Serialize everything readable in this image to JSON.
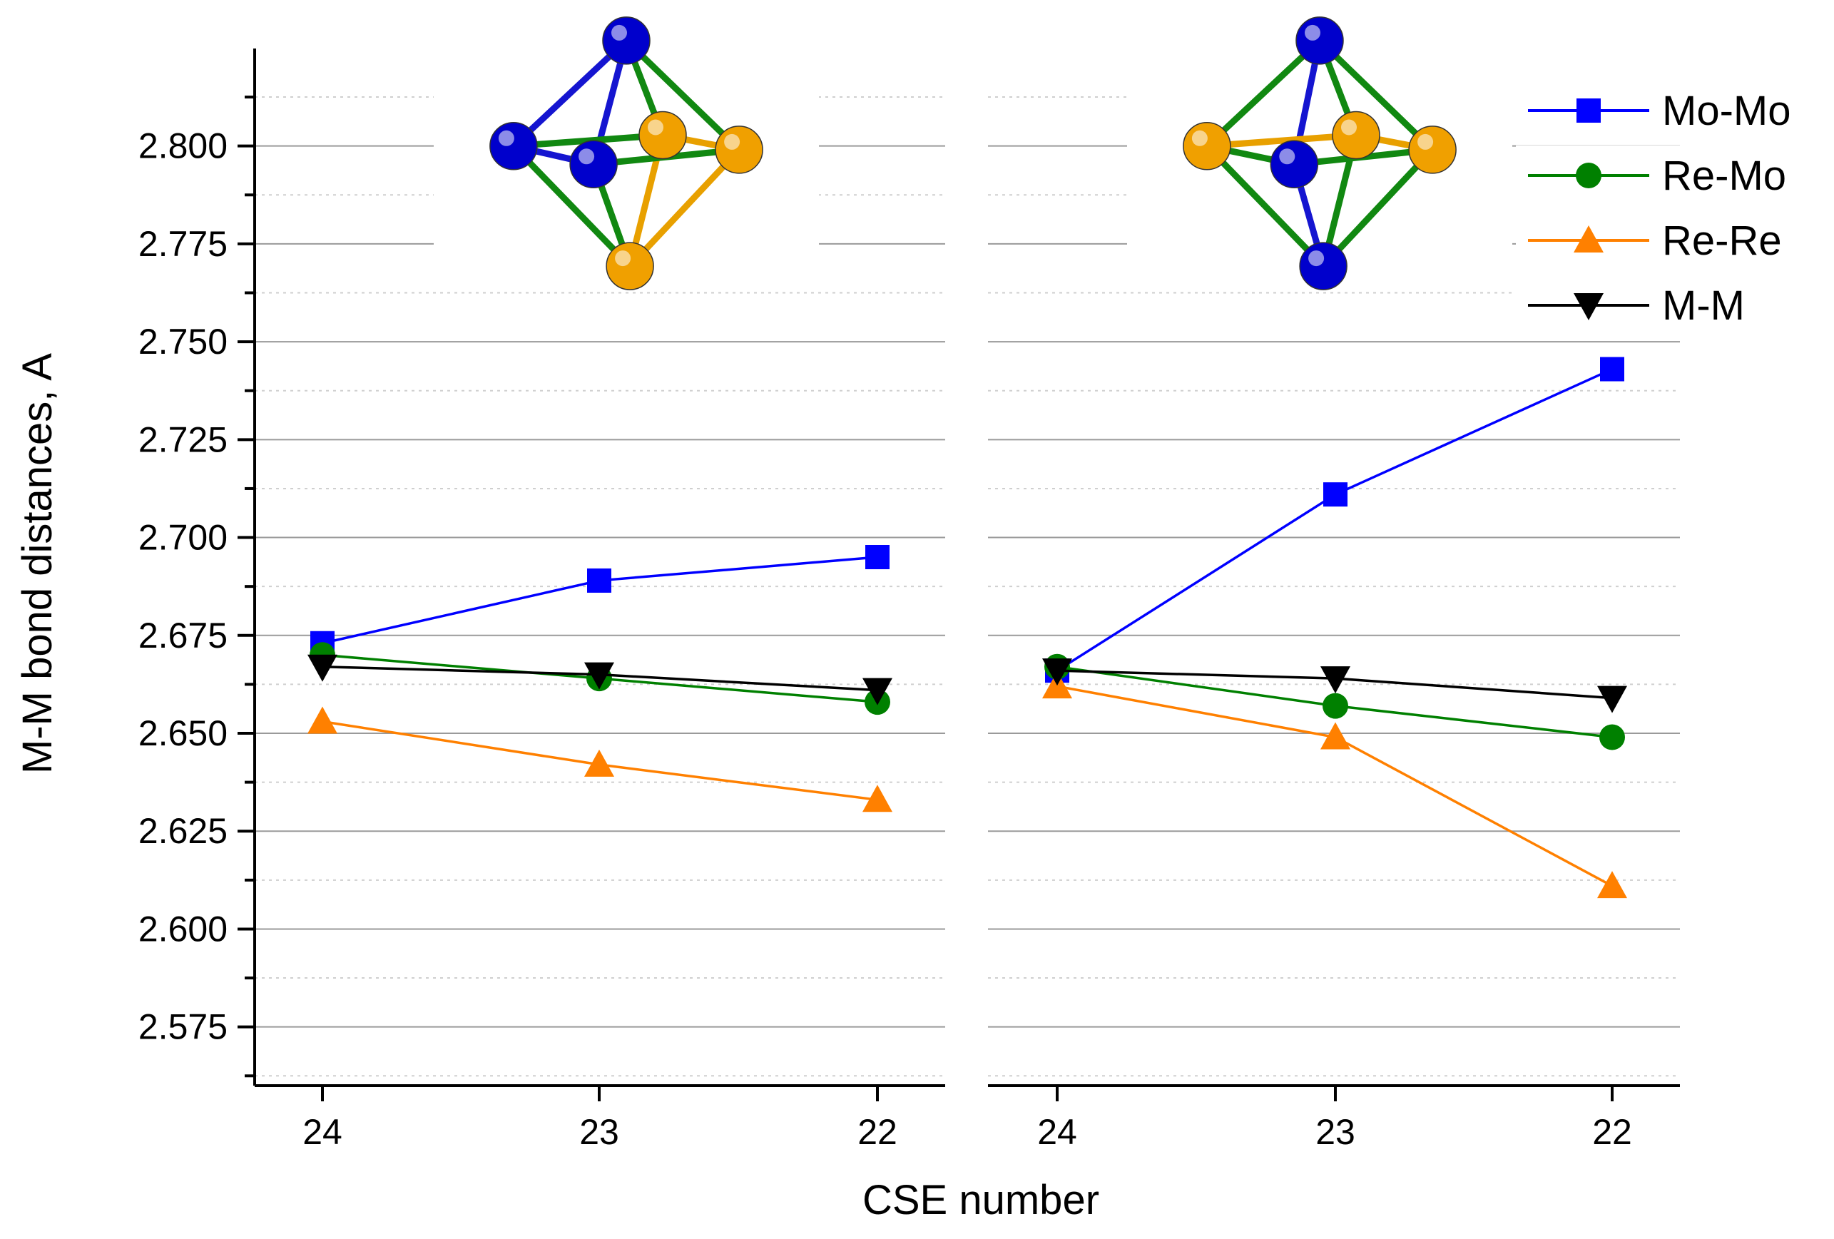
{
  "chart_data": {
    "type": "line",
    "xlabel": "CSE number",
    "ylabel": "M-M bond distances, A",
    "ylim": [
      2.56,
      2.83
    ],
    "yticks": [
      "2.575",
      "2.600",
      "2.625",
      "2.650",
      "2.675",
      "2.700",
      "2.725",
      "2.750",
      "2.775",
      "2.800"
    ],
    "grid": true,
    "legend_position": "top-right",
    "panels": [
      {
        "categories": [
          "24",
          "23",
          "22"
        ],
        "series": [
          {
            "name": "Mo-Mo",
            "color": "#0000ff",
            "marker": "square",
            "values": [
              2.673,
              2.689,
              2.695
            ]
          },
          {
            "name": "Re-Mo",
            "color": "#008000",
            "marker": "circle",
            "values": [
              2.67,
              2.664,
              2.658
            ]
          },
          {
            "name": "Re-Re",
            "color": "#ff8000",
            "marker": "triangle-up",
            "values": [
              2.653,
              2.642,
              2.633
            ]
          },
          {
            "name": "M-M",
            "color": "#000000",
            "marker": "triangle-down",
            "values": [
              2.667,
              2.665,
              2.661
            ]
          }
        ]
      },
      {
        "categories": [
          "24",
          "23",
          "22"
        ],
        "series": [
          {
            "name": "Mo-Mo",
            "color": "#0000ff",
            "marker": "square",
            "values": [
              2.666,
              2.711,
              2.743
            ]
          },
          {
            "name": "Re-Mo",
            "color": "#008000",
            "marker": "circle",
            "values": [
              2.667,
              2.657,
              2.649
            ]
          },
          {
            "name": "Re-Re",
            "color": "#ff8000",
            "marker": "triangle-up",
            "values": [
              2.662,
              2.649,
              2.611
            ]
          },
          {
            "name": "M-M",
            "color": "#000000",
            "marker": "triangle-down",
            "values": [
              2.666,
              2.664,
              2.659
            ]
          }
        ]
      }
    ],
    "legend": [
      {
        "name": "Mo-Mo",
        "color": "#0000ff",
        "marker": "square"
      },
      {
        "name": "Re-Mo",
        "color": "#008000",
        "marker": "circle"
      },
      {
        "name": "Re-Re",
        "color": "#ff8000",
        "marker": "triangle-up"
      },
      {
        "name": "M-M",
        "color": "#000000",
        "marker": "triangle-down"
      }
    ],
    "insets": [
      {
        "name": "octahedron-cluster-left",
        "atom_colors": [
          "#0000cc",
          "#0000cc",
          "#0000cc",
          "#f0a000",
          "#f0a000",
          "#f0a000"
        ]
      },
      {
        "name": "octahedron-cluster-right",
        "atom_colors": [
          "#0000cc",
          "#0000cc",
          "#0000cc",
          "#f0a000",
          "#f0a000",
          "#f0a000"
        ]
      }
    ]
  }
}
